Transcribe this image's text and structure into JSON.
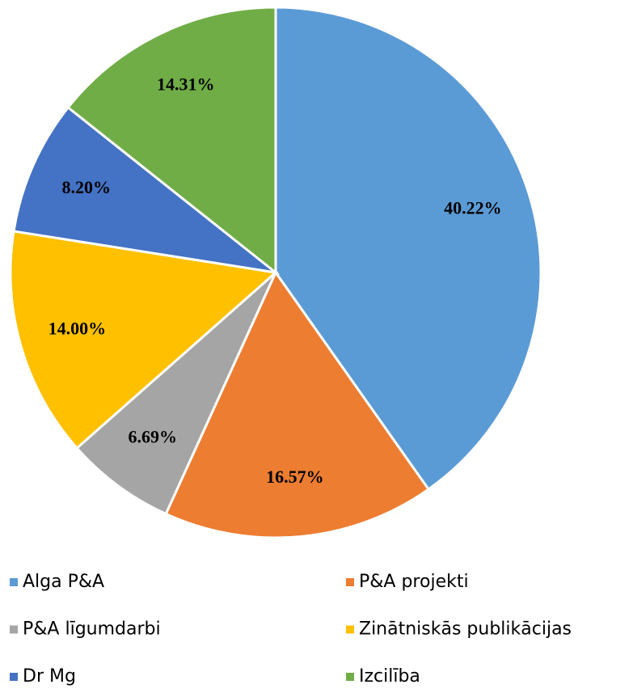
{
  "chart_data": {
    "type": "pie",
    "categories": [
      "Alga P&A",
      "P&A projekti",
      "P&A līgumdarbi",
      "Zinātniskās publikācijas",
      "Dr Mg",
      "Izcilība"
    ],
    "values": [
      40.22,
      16.57,
      6.69,
      14.0,
      8.2,
      14.31
    ],
    "value_labels": [
      "40.22%",
      "16.57%",
      "6.69%",
      "14.00%",
      "8.20%",
      "14.31%"
    ],
    "colors": [
      "#5b9bd5",
      "#ed7d31",
      "#a5a5a5",
      "#ffc000",
      "#4472c4",
      "#70ad47"
    ],
    "legend": "bottom"
  }
}
